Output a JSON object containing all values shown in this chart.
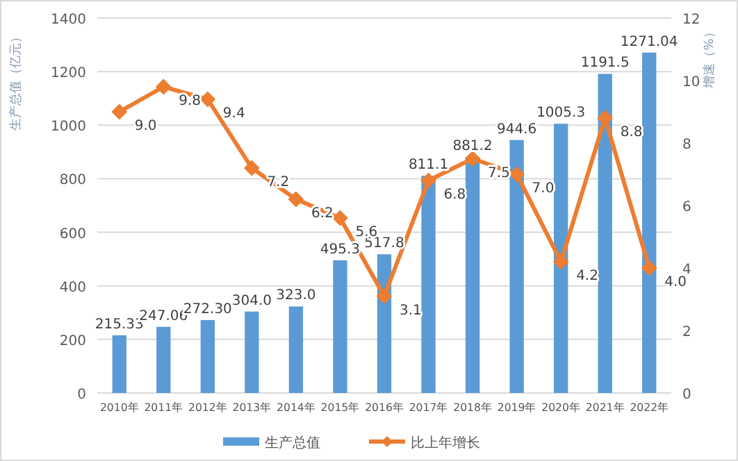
{
  "chart_data": {
    "type": "bar",
    "ylabel": "生产总值（亿元）",
    "y2label": "增速（%）",
    "categories": [
      "2010年",
      "2011年",
      "2012年",
      "2013年",
      "2014年",
      "2015年",
      "2016年",
      "2017年",
      "2018年",
      "2019年",
      "2020年",
      "2021年",
      "2022年"
    ],
    "series": [
      {
        "name": "生产总值",
        "color": "#5b9bd5",
        "values": [
          215.33,
          247.06,
          272.3,
          304.0,
          323.0,
          495.3,
          517.8,
          811.1,
          881.2,
          944.6,
          1005.3,
          1191.5,
          1271.04
        ],
        "value_labels": [
          "215.33",
          "247.06",
          "272.30",
          "304.0",
          "323.0",
          "495.3",
          "517.8",
          "811.1",
          "881.2",
          "944.6",
          "1005.3",
          "1191.5",
          "1271.04"
        ]
      },
      {
        "name": "比上年增长",
        "type": "line",
        "axis": "y2",
        "color": "#ed7d31",
        "marker": "diamond",
        "values": [
          9.0,
          9.8,
          9.4,
          7.2,
          6.2,
          5.6,
          3.1,
          6.8,
          7.5,
          7.0,
          4.2,
          8.8,
          4.0
        ],
        "value_labels": [
          "9.0",
          "9.8",
          "9.4",
          "7.2",
          "6.2",
          "5.6",
          "3.1",
          "6.8",
          "7.5",
          "7.0",
          "4.2",
          "8.8",
          "4.0"
        ]
      }
    ],
    "ylim": [
      0,
      1400
    ],
    "yticks": [
      0,
      200,
      400,
      600,
      800,
      1000,
      1200,
      1400
    ],
    "y2lim": [
      0,
      12
    ],
    "y2ticks": [
      0,
      2,
      4,
      6,
      8,
      10,
      12
    ],
    "grid": "y",
    "legend": "bottom"
  }
}
